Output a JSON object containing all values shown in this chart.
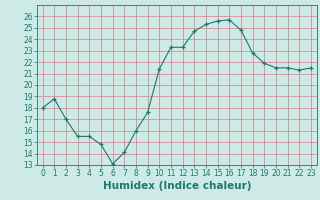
{
  "x": [
    0,
    1,
    2,
    3,
    4,
    5,
    6,
    7,
    8,
    9,
    10,
    11,
    12,
    13,
    14,
    15,
    16,
    17,
    18,
    19,
    20,
    21,
    22,
    23
  ],
  "y": [
    18.0,
    18.8,
    17.0,
    15.5,
    15.5,
    14.8,
    13.1,
    14.1,
    16.0,
    17.6,
    21.4,
    23.3,
    23.3,
    24.7,
    25.3,
    25.6,
    25.7,
    24.8,
    22.8,
    21.9,
    21.5,
    21.5,
    21.3,
    21.5
  ],
  "line_color": "#1a7a6e",
  "marker": "+",
  "marker_size": 3,
  "bg_color": "#ceeae6",
  "grid_color": "#b0d8d2",
  "xlabel": "Humidex (Indice chaleur)",
  "ylim": [
    13,
    27
  ],
  "xlim": [
    -0.5,
    23.5
  ],
  "yticks": [
    13,
    14,
    15,
    16,
    17,
    18,
    19,
    20,
    21,
    22,
    23,
    24,
    25,
    26
  ],
  "xticks": [
    0,
    1,
    2,
    3,
    4,
    5,
    6,
    7,
    8,
    9,
    10,
    11,
    12,
    13,
    14,
    15,
    16,
    17,
    18,
    19,
    20,
    21,
    22,
    23
  ],
  "tick_label_fontsize": 5.5,
  "xlabel_fontsize": 7.5,
  "xlabel_fontweight": "bold"
}
